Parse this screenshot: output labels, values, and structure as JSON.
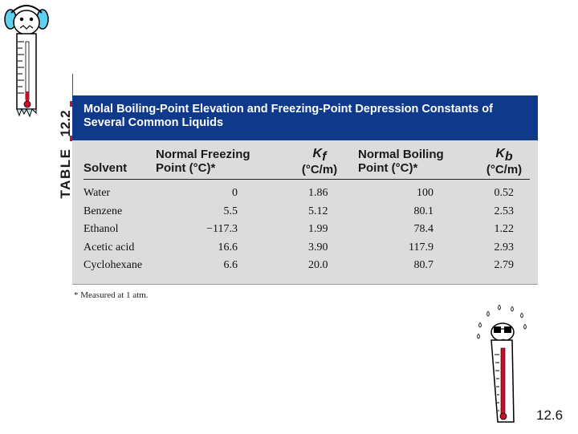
{
  "side_label": {
    "word": "TABLE",
    "number": "12.2"
  },
  "header": {
    "title_line1": "Molal Boiling-Point Elevation and Freezing-Point Depression Constants of",
    "title_line2": "Several Common Liquids"
  },
  "columns": {
    "solvent": "Solvent",
    "freezing_line1": "Normal Freezing",
    "freezing_line2": "Point (°C)*",
    "kf_symbol": "K",
    "kf_sub": "f",
    "kf_units": "(°C/m)",
    "boiling_line1": "Normal Boiling",
    "boiling_line2": "Point (°C)*",
    "kb_symbol": "K",
    "kb_sub": "b",
    "kb_units": "(°C/m)"
  },
  "rows": [
    {
      "solvent": "Water",
      "freezing": "0",
      "kf": "1.86",
      "boiling": "100",
      "kb": "0.52"
    },
    {
      "solvent": "Benzene",
      "freezing": "5.5",
      "kf": "5.12",
      "boiling": "80.1",
      "kb": "2.53"
    },
    {
      "solvent": "Ethanol",
      "freezing": "−117.3",
      "kf": "1.99",
      "boiling": "78.4",
      "kb": "1.22"
    },
    {
      "solvent": "Acetic acid",
      "freezing": "16.6",
      "kf": "3.90",
      "boiling": "117.9",
      "kb": "2.93"
    },
    {
      "solvent": "Cyclohexane",
      "freezing": "6.6",
      "kf": "20.0",
      "boiling": "80.7",
      "kb": "2.79"
    }
  ],
  "footnote": "* Measured at 1 atm.",
  "page_number": "12.6",
  "colors": {
    "header_bg": "#0f3a8c",
    "table_bg": "#dcdcdc",
    "marker": "#c8102e"
  }
}
